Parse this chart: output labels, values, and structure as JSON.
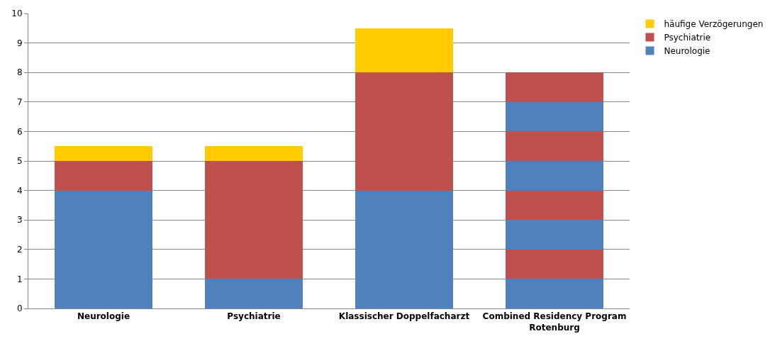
{
  "chart_data": {
    "type": "bar",
    "stacked": true,
    "categories": [
      "Neurologie",
      "Psychiatrie",
      "Klassischer Doppelfacharzt",
      "Combined Residency Program Rotenburg"
    ],
    "series": [
      {
        "name": "Neurologie",
        "color": "#4f81bd",
        "values": [
          4,
          1,
          4,
          1
        ]
      },
      {
        "name": "Psychiatrie",
        "color": "#c0504d",
        "values": [
          1,
          4,
          4,
          1
        ]
      },
      {
        "name": "häufige Verzögerungen",
        "color": "#ffcc00",
        "values": [
          0.5,
          0.5,
          1.5,
          null
        ]
      },
      {
        "color": "#4f81bd",
        "values": [
          null,
          null,
          null,
          1
        ]
      },
      {
        "color": "#c0504d",
        "values": [
          null,
          null,
          null,
          1
        ]
      },
      {
        "color": "#4f81bd",
        "values": [
          null,
          null,
          null,
          1
        ]
      },
      {
        "color": "#c0504d",
        "values": [
          null,
          null,
          null,
          1
        ]
      },
      {
        "color": "#4f81bd",
        "values": [
          null,
          null,
          null,
          1
        ]
      },
      {
        "color": "#c0504d",
        "values": [
          null,
          null,
          null,
          1
        ]
      }
    ],
    "ylim": [
      0,
      10
    ],
    "yticks": [
      0,
      1,
      2,
      3,
      4,
      5,
      6,
      7,
      8,
      9,
      10
    ],
    "grid": "y",
    "legend": "top right"
  }
}
